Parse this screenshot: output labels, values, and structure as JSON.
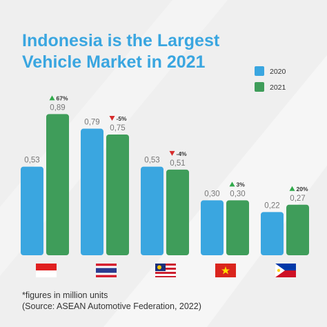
{
  "chart_data": {
    "type": "bar",
    "title": "Indonesia is the Largest Vehicle Market in 2021",
    "categories": [
      null,
      null,
      null,
      null,
      null
    ],
    "series": [
      {
        "name": "2020",
        "color": "#3aa6e0",
        "values": [
          0.53,
          0.79,
          0.53,
          0.3,
          0.22
        ],
        "value_labels": [
          "0,53",
          "0,79",
          "0,53",
          "0,30",
          "0,22"
        ]
      },
      {
        "name": "2021",
        "color": "#3f9d5a",
        "values": [
          0.89,
          0.75,
          0.51,
          0.3,
          0.27
        ],
        "value_labels": [
          "0,89",
          "0,75",
          "0,51",
          "0,30",
          "0,27"
        ]
      }
    ],
    "changes": [
      {
        "label": "67%",
        "direction": "up"
      },
      {
        "label": "-5%",
        "direction": "down"
      },
      {
        "label": "-4%",
        "direction": "down"
      },
      {
        "label": "3%",
        "direction": "up"
      },
      {
        "label": "20%",
        "direction": "up"
      }
    ],
    "legend_position": "upper right",
    "notes": [
      "*figures in million units",
      "(Source: ASEAN Automotive Federation, 2022)"
    ]
  }
}
